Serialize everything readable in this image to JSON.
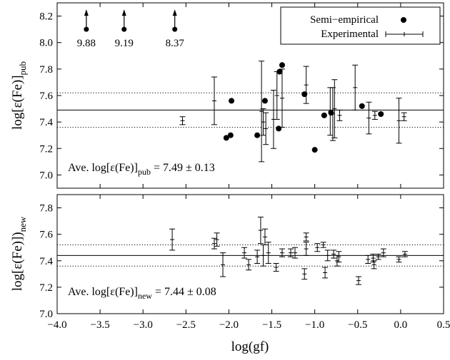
{
  "chart_data": [
    {
      "type": "scatter",
      "panel": "top",
      "ylabel_main": "log[ε(Fe)]",
      "ylabel_sub": "pub",
      "xlim": [
        -4.0,
        0.5
      ],
      "ylim": [
        6.9,
        8.3
      ],
      "yticks": [
        "7.0",
        "7.2",
        "7.4",
        "7.6",
        "7.8",
        "8.0",
        "8.2"
      ],
      "grid": false,
      "legend_position": "top-right",
      "legend": {
        "semi": "Semi−empirical",
        "exp": "Experimental"
      },
      "hlines": {
        "mean": 7.49,
        "upper": 7.62,
        "lower": 7.36
      },
      "annotation": {
        "prefix": "Ave. log[ε(Fe)]",
        "sub": "pub",
        "suffix": " = 7.49 ± 0.13"
      },
      "arrows": [
        {
          "x": -3.66,
          "y": 8.1,
          "label": "9.88"
        },
        {
          "x": -3.22,
          "y": 8.1,
          "label": "9.19"
        },
        {
          "x": -2.63,
          "y": 8.1,
          "label": "8.37"
        }
      ],
      "series": [
        {
          "name": "Semi−empirical",
          "marker": "filled-circle",
          "points": [
            {
              "x": -2.03,
              "y": 7.28
            },
            {
              "x": -1.98,
              "y": 7.3
            },
            {
              "x": -1.97,
              "y": 7.56
            },
            {
              "x": -1.67,
              "y": 7.3
            },
            {
              "x": -1.58,
              "y": 7.56
            },
            {
              "x": -1.42,
              "y": 7.35
            },
            {
              "x": -1.41,
              "y": 7.78
            },
            {
              "x": -1.38,
              "y": 7.83
            },
            {
              "x": -1.12,
              "y": 7.61
            },
            {
              "x": -1.0,
              "y": 7.19
            },
            {
              "x": -0.89,
              "y": 7.45
            },
            {
              "x": -0.81,
              "y": 7.47
            },
            {
              "x": -0.45,
              "y": 7.52
            },
            {
              "x": -0.23,
              "y": 7.46
            }
          ]
        },
        {
          "name": "Experimental",
          "marker": "errorbar",
          "points": [
            {
              "x": -2.54,
              "y": 7.41,
              "err": 0.03
            },
            {
              "x": -2.17,
              "y": 7.56,
              "err": 0.18
            },
            {
              "x": -1.62,
              "y": 7.48,
              "err": 0.38
            },
            {
              "x": -1.6,
              "y": 7.4,
              "err": 0.1
            },
            {
              "x": -1.57,
              "y": 7.35,
              "err": 0.12
            },
            {
              "x": -1.48,
              "y": 7.42,
              "err": 0.22
            },
            {
              "x": -1.44,
              "y": 7.6,
              "err": 0.18
            },
            {
              "x": -1.38,
              "y": 7.58,
              "err": 0.22
            },
            {
              "x": -1.1,
              "y": 7.68,
              "err": 0.14
            },
            {
              "x": -0.82,
              "y": 7.48,
              "err": 0.18
            },
            {
              "x": -0.79,
              "y": 7.46,
              "err": 0.2
            },
            {
              "x": -0.77,
              "y": 7.5,
              "err": 0.22
            },
            {
              "x": -0.71,
              "y": 7.45,
              "err": 0.04
            },
            {
              "x": -0.53,
              "y": 7.66,
              "err": 0.17
            },
            {
              "x": -0.37,
              "y": 7.43,
              "err": 0.12
            },
            {
              "x": -0.3,
              "y": 7.45,
              "err": 0.03
            },
            {
              "x": -0.02,
              "y": 7.41,
              "err": 0.17
            },
            {
              "x": 0.04,
              "y": 7.44,
              "err": 0.03
            }
          ]
        }
      ]
    },
    {
      "type": "scatter",
      "panel": "bottom",
      "xlabel": "log(gf)",
      "ylabel_main": "log[ε(Fe)])",
      "ylabel_sub": "new",
      "xlim": [
        -4.0,
        0.5
      ],
      "ylim": [
        7.0,
        7.9
      ],
      "xticks": [
        "−4.0",
        "−3.5",
        "−3.0",
        "−2.5",
        "−2.0",
        "−1.5",
        "−1.0",
        "−0.5",
        "0.0",
        "0.5"
      ],
      "yticks": [
        "7.0",
        "7.2",
        "7.4",
        "7.6",
        "7.8"
      ],
      "grid": false,
      "hlines": {
        "mean": 7.44,
        "upper": 7.52,
        "lower": 7.36
      },
      "annotation": {
        "prefix": "Ave. log[ε(Fe)]",
        "sub": "new",
        "suffix": " = 7.44 ± 0.08"
      },
      "series": [
        {
          "name": "Experimental",
          "marker": "errorbar",
          "points": [
            {
              "x": -2.66,
              "y": 7.56,
              "err": 0.08
            },
            {
              "x": -2.17,
              "y": 7.53,
              "err": 0.04
            },
            {
              "x": -2.14,
              "y": 7.56,
              "err": 0.05
            },
            {
              "x": -2.07,
              "y": 7.37,
              "err": 0.09
            },
            {
              "x": -1.82,
              "y": 7.46,
              "err": 0.04
            },
            {
              "x": -1.77,
              "y": 7.37,
              "err": 0.04
            },
            {
              "x": -1.67,
              "y": 7.43,
              "err": 0.05
            },
            {
              "x": -1.63,
              "y": 7.63,
              "err": 0.1
            },
            {
              "x": -1.6,
              "y": 7.44,
              "err": 0.08
            },
            {
              "x": -1.58,
              "y": 7.58,
              "err": 0.06
            },
            {
              "x": -1.54,
              "y": 7.46,
              "err": 0.08
            },
            {
              "x": -1.45,
              "y": 7.35,
              "err": 0.03
            },
            {
              "x": -1.38,
              "y": 7.46,
              "err": 0.03
            },
            {
              "x": -1.28,
              "y": 7.46,
              "err": 0.03
            },
            {
              "x": -1.23,
              "y": 7.46,
              "err": 0.04
            },
            {
              "x": -1.12,
              "y": 7.3,
              "err": 0.04
            },
            {
              "x": -1.1,
              "y": 7.58,
              "err": 0.03
            },
            {
              "x": -1.1,
              "y": 7.49,
              "err": 0.05
            },
            {
              "x": -0.97,
              "y": 7.5,
              "err": 0.03
            },
            {
              "x": -0.9,
              "y": 7.52,
              "err": 0.02
            },
            {
              "x": -0.88,
              "y": 7.31,
              "err": 0.04
            },
            {
              "x": -0.85,
              "y": 7.44,
              "err": 0.04
            },
            {
              "x": -0.78,
              "y": 7.45,
              "err": 0.03
            },
            {
              "x": -0.74,
              "y": 7.4,
              "err": 0.04
            },
            {
              "x": -0.72,
              "y": 7.43,
              "err": 0.04
            },
            {
              "x": -0.49,
              "y": 7.25,
              "err": 0.03
            },
            {
              "x": -0.38,
              "y": 7.41,
              "err": 0.03
            },
            {
              "x": -0.32,
              "y": 7.42,
              "err": 0.03
            },
            {
              "x": -0.31,
              "y": 7.37,
              "err": 0.03
            },
            {
              "x": -0.26,
              "y": 7.43,
              "err": 0.02
            },
            {
              "x": -0.2,
              "y": 7.46,
              "err": 0.03
            },
            {
              "x": -0.02,
              "y": 7.41,
              "err": 0.02
            },
            {
              "x": 0.05,
              "y": 7.45,
              "err": 0.02
            }
          ]
        }
      ]
    }
  ]
}
